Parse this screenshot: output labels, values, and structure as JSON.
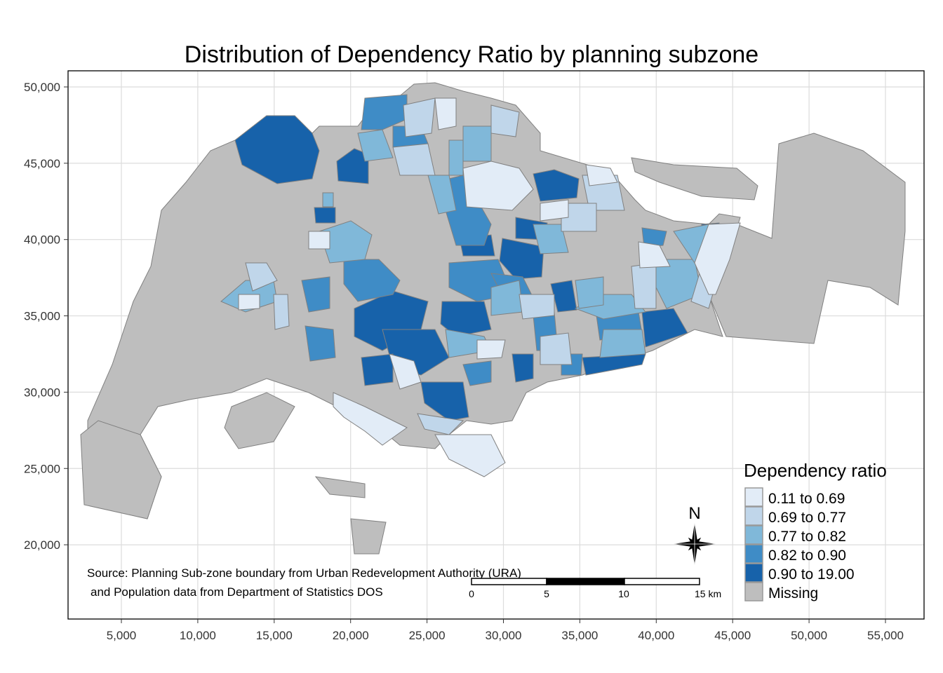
{
  "title": "Distribution of Dependency Ratio by planning subzone",
  "x_ticks": [
    "5,000",
    "10,000",
    "15,000",
    "20,000",
    "25,000",
    "30,000",
    "35,000",
    "40,000",
    "45,000",
    "50,000",
    "55,000"
  ],
  "x_tick_values": [
    5000,
    10000,
    15000,
    20000,
    25000,
    30000,
    35000,
    40000,
    45000,
    50000,
    55000
  ],
  "y_ticks": [
    "50,000",
    "45,000",
    "40,000",
    "35,000",
    "30,000",
    "25,000",
    "20,000"
  ],
  "y_tick_values": [
    50000,
    45000,
    40000,
    35000,
    30000,
    25000,
    20000
  ],
  "legend": {
    "title": "Dependency ratio",
    "items": [
      {
        "label": "0.11 to 0.69",
        "color": "#e2ecf7"
      },
      {
        "label": "0.69 to 0.77",
        "color": "#c0d6ea"
      },
      {
        "label": "0.77 to 0.82",
        "color": "#80b8d9"
      },
      {
        "label": "0.82 to 0.90",
        "color": "#3f8cc6"
      },
      {
        "label": "0.90 to 19.00",
        "color": "#1762aa"
      },
      {
        "label": "Missing",
        "color": "#bebebe"
      }
    ]
  },
  "source": {
    "line1": "Source: Planning Sub-zone boundary from Urban Redevelopment Authority (URA)",
    "line2": "and Population data from Department of Statistics DOS"
  },
  "scale_bar": {
    "labels": [
      "0",
      "5",
      "10",
      "15 km"
    ]
  },
  "north_arrow": {
    "label": "N"
  },
  "grid": true
}
